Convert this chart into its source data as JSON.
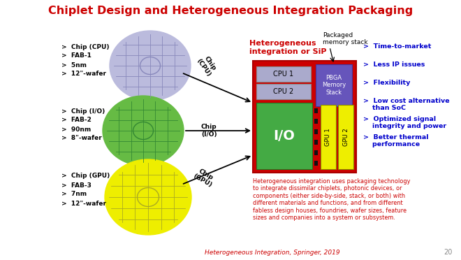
{
  "title": "Chiplet Design and Heterogeneous Integration Packaging",
  "title_color": "#CC0000",
  "title_fontsize": 11.5,
  "bg_color": "#FFFFFF",
  "cpu_chip_color": "#BBBBDD",
  "io_chip_color": "#66BB44",
  "gpu_chip_color": "#EEEE00",
  "main_package_color": "#CC0000",
  "io_block_color": "#44AA44",
  "cpu_block_color": "#AAAACC",
  "pbga_block_color": "#6655BB",
  "gpu_block_color": "#EEEE00",
  "hetero_label": "Heterogeneous\nintegration or SiP",
  "packaged_memory_label": "Packaged\nmemory stack",
  "cpu_labels": [
    ">  Chip (CPU)",
    ">  FAB-1",
    ">  5nm",
    ">  12\"-wafer"
  ],
  "io_labels": [
    ">  Chip (I/O)",
    ">  FAB-2",
    ">  90nm",
    ">  8\"-wafer"
  ],
  "gpu_labels": [
    ">  Chip (GPU)",
    ">  FAB-3",
    ">  7nm",
    ">  12\"-wafer"
  ],
  "right_bullets": [
    ">  Time-to-market",
    ">  Less IP issues",
    ">  Flexibility",
    ">  Low cost alternative\n    than SoC",
    ">  Optimized signal\n    integrity and power",
    ">  Better thermal\n    performance"
  ],
  "bottom_text": "Heterogeneous integration uses packaging technology\nto integrate dissimilar chiplets, photonic devices, or\ncomponents (either side-by-side, stack, or both) with\ndifferent materials and functions, and from different\nfabless design houses, foundries, wafer sizes, feature\nsizes and companies into a system or subsystem.",
  "footer": "Heterogeneous Integration, Springer, 2019"
}
